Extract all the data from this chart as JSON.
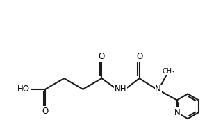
{
  "background": "#ffffff",
  "line_color": "#1a1a1a",
  "lw": 1.5,
  "fs": 8.5,
  "figsize": [
    3.21,
    1.89
  ],
  "dpi": 100,
  "xlim": [
    0,
    10
  ],
  "ylim": [
    0,
    6.3
  ],
  "atoms": {
    "HO": "HO",
    "O1": "O",
    "O2": "O",
    "NH": "NH",
    "O3": "O",
    "N_urea": "N",
    "Me": "CH₃",
    "N_py": "N"
  }
}
